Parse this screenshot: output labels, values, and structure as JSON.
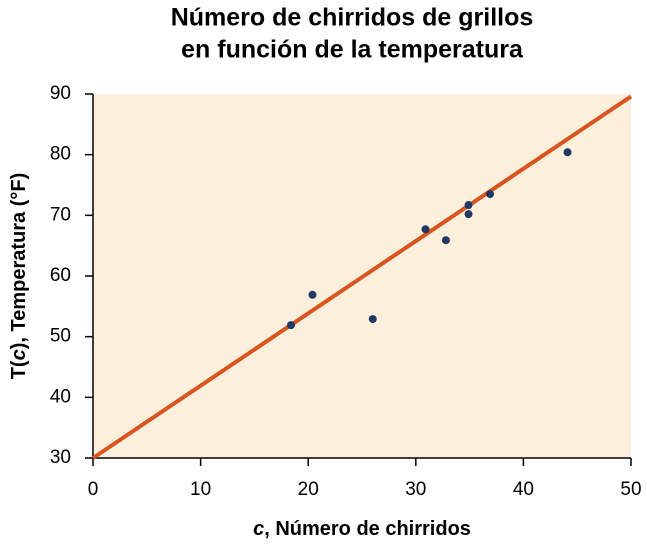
{
  "chart_data": {
    "type": "scatter",
    "title": [
      "Número de chirridos de grillos",
      "en función de la temperatura"
    ],
    "x_label": [
      {
        "text": "c",
        "italic": true
      },
      {
        "text": ", Número de chirridos"
      }
    ],
    "y_label": [
      {
        "text": "T("
      },
      {
        "text": "c",
        "italic": true
      },
      {
        "text": "), Temperatura (°F)"
      }
    ],
    "x": [
      18.4,
      20.4,
      26,
      30.9,
      32.8,
      34.9,
      34.9,
      36.9,
      44.1
    ],
    "y": [
      51.9,
      56.9,
      52.9,
      67.7,
      65.9,
      71.7,
      70.2,
      73.5,
      80.4
    ],
    "color": "#1f3864",
    "fit_line": {
      "x": [
        0,
        50
      ],
      "y": [
        30,
        89.6
      ],
      "color": "#d9541e"
    },
    "xlim": [
      0,
      50
    ],
    "xticks": [
      0,
      10,
      20,
      30,
      40,
      50
    ],
    "ylim": [
      30,
      90
    ],
    "yticks": [
      30,
      40,
      50,
      60,
      70,
      80,
      90
    ],
    "plot_background": "#fcefdc",
    "grid": false
  }
}
